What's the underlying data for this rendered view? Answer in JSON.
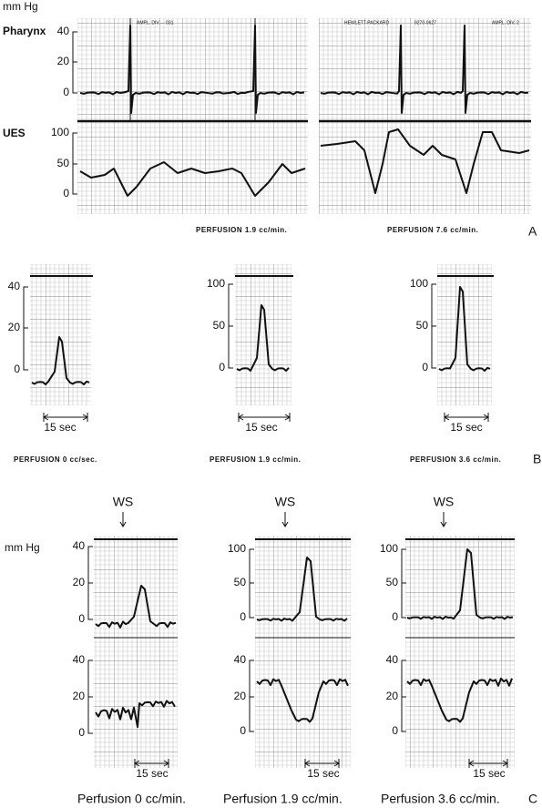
{
  "panel_a": {
    "units": "mm Hg",
    "pharynx_label": "Pharynx",
    "ues_label": "UES",
    "pharynx_ticks": [
      "40",
      "20",
      "0"
    ],
    "ues_ticks": [
      "100",
      "50",
      "0"
    ],
    "headers": [
      "AMPL. DIV.— 031",
      "HEWLETT-PACKARD",
      "9270-0627",
      "AMPL. DIV. 2"
    ],
    "captions": [
      "PERFUSION 1.9 cc/min.",
      "PERFUSION 7.6 cc/min."
    ],
    "letter": "A"
  },
  "panel_b": {
    "strips": [
      {
        "ticks": [
          "40",
          "20",
          "0"
        ],
        "scale": "15 sec",
        "caption": "PERFUSION 0 cc/sec."
      },
      {
        "ticks": [
          "100",
          "50",
          "0"
        ],
        "scale": "15 sec",
        "caption": "PERFUSION 1.9 cc/min."
      },
      {
        "ticks": [
          "100",
          "50",
          "0"
        ],
        "scale": "15 sec",
        "caption": "PERFUSION 3.6 cc/min."
      }
    ],
    "letter": "B"
  },
  "panel_c": {
    "units": "mm Hg",
    "marker": "WS",
    "strips": [
      {
        "upper_ticks": [
          "40",
          "20",
          "0"
        ],
        "lower_ticks": [
          "40",
          "20",
          "0"
        ],
        "scale": "15 sec",
        "caption": "Perfusion 0 cc/min."
      },
      {
        "upper_ticks": [
          "100",
          "50",
          "0"
        ],
        "lower_ticks": [
          "40",
          "20",
          "0"
        ],
        "scale": "15 sec",
        "caption": "Perfusion 1.9 cc/min."
      },
      {
        "upper_ticks": [
          "100",
          "50",
          "0"
        ],
        "lower_ticks": [
          "40",
          "20",
          "0"
        ],
        "scale": "15 sec",
        "caption": "Perfusion 3.6 cc/min."
      }
    ],
    "letter": "C"
  }
}
